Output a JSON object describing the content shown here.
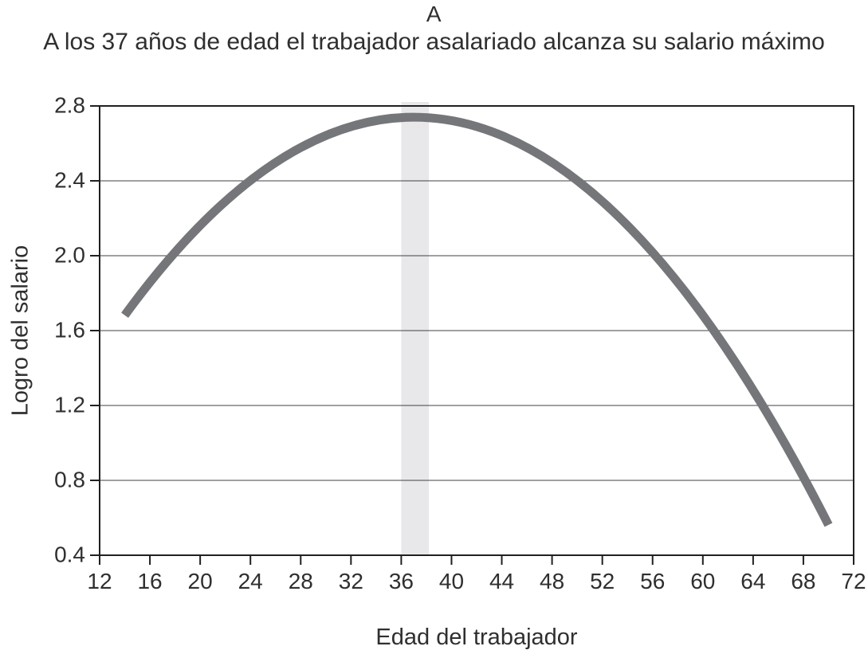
{
  "chart_data": {
    "type": "line",
    "title": "A",
    "subtitle": "A los 37 años de edad el trabajador asalariado alcanza su salario máximo",
    "xlabel": "Edad del trabajador",
    "ylabel": "Logro del salario",
    "xlim": [
      12,
      72
    ],
    "ylim": [
      0.4,
      2.8
    ],
    "x_ticks": [
      12,
      16,
      20,
      24,
      28,
      32,
      36,
      40,
      44,
      48,
      52,
      56,
      60,
      64,
      68,
      72
    ],
    "y_ticks": [
      "0.4",
      "0.8",
      "1.2",
      "1.6",
      "2.0",
      "2.4",
      "2.8"
    ],
    "grid": "horizontal",
    "legend": "none",
    "curve": {
      "shape": "parabola",
      "vertex_x": 37,
      "vertex_y": 2.74,
      "a": -0.002,
      "x_start": 14,
      "x_end": 70
    },
    "series": [
      {
        "name": "Logro del salario",
        "x": [
          14,
          16,
          20,
          24,
          28,
          32,
          36,
          37,
          40,
          44,
          48,
          52,
          56,
          60,
          64,
          68,
          70
        ],
        "y": [
          1.68,
          1.86,
          2.16,
          2.4,
          2.58,
          2.69,
          2.74,
          2.74,
          2.72,
          2.64,
          2.5,
          2.29,
          2.02,
          1.68,
          1.28,
          0.82,
          0.56
        ]
      }
    ],
    "highlight_band": {
      "x_start": 36,
      "x_end": 38.2
    },
    "colors": {
      "curve": "#75767a",
      "band": "#e8e8ea",
      "axis": "#231f20",
      "grid": "#404040",
      "text": "#2f2f31"
    }
  }
}
